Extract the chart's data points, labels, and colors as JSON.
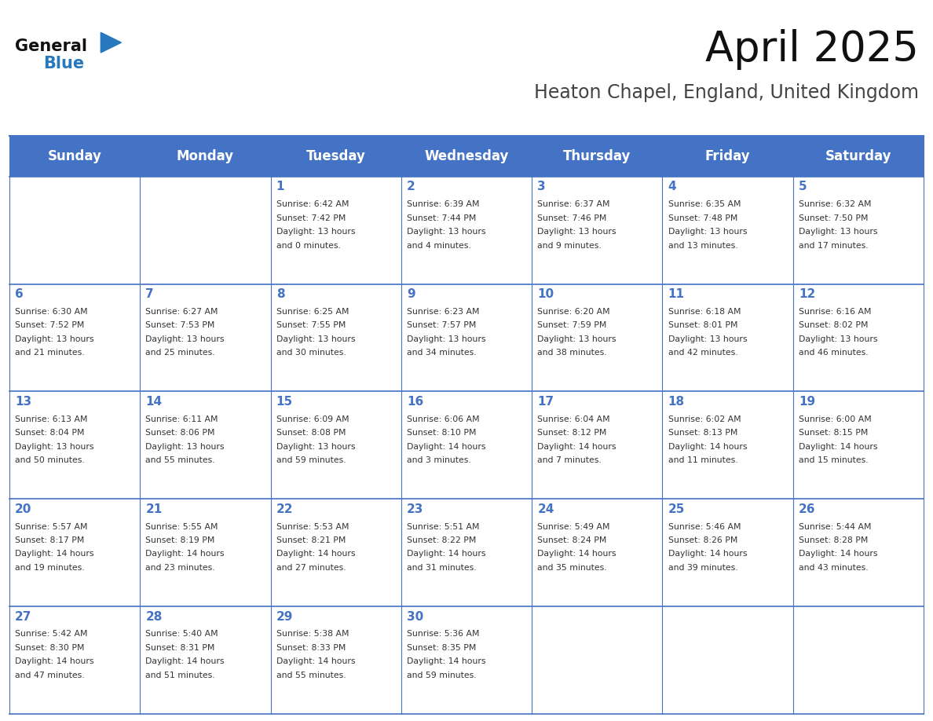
{
  "title": "April 2025",
  "subtitle": "Heaton Chapel, England, United Kingdom",
  "days_of_week": [
    "Sunday",
    "Monday",
    "Tuesday",
    "Wednesday",
    "Thursday",
    "Friday",
    "Saturday"
  ],
  "header_bg_color": "#4472C4",
  "header_text_color": "#FFFFFF",
  "cell_bg_color": "#FFFFFF",
  "border_color": "#4472C4",
  "day_num_color": "#4472C4",
  "text_color": "#333333",
  "title_color": "#111111",
  "subtitle_color": "#444444",
  "logo_general_color": "#111111",
  "logo_blue_color": "#2878BE",
  "weeks": [
    [
      {
        "day": null,
        "sunrise": null,
        "sunset": null,
        "daylight": null
      },
      {
        "day": null,
        "sunrise": null,
        "sunset": null,
        "daylight": null
      },
      {
        "day": 1,
        "sunrise": "6:42 AM",
        "sunset": "7:42 PM",
        "daylight": "13 hours and 0 minutes."
      },
      {
        "day": 2,
        "sunrise": "6:39 AM",
        "sunset": "7:44 PM",
        "daylight": "13 hours and 4 minutes."
      },
      {
        "day": 3,
        "sunrise": "6:37 AM",
        "sunset": "7:46 PM",
        "daylight": "13 hours and 9 minutes."
      },
      {
        "day": 4,
        "sunrise": "6:35 AM",
        "sunset": "7:48 PM",
        "daylight": "13 hours and 13 minutes."
      },
      {
        "day": 5,
        "sunrise": "6:32 AM",
        "sunset": "7:50 PM",
        "daylight": "13 hours and 17 minutes."
      }
    ],
    [
      {
        "day": 6,
        "sunrise": "6:30 AM",
        "sunset": "7:52 PM",
        "daylight": "13 hours and 21 minutes."
      },
      {
        "day": 7,
        "sunrise": "6:27 AM",
        "sunset": "7:53 PM",
        "daylight": "13 hours and 25 minutes."
      },
      {
        "day": 8,
        "sunrise": "6:25 AM",
        "sunset": "7:55 PM",
        "daylight": "13 hours and 30 minutes."
      },
      {
        "day": 9,
        "sunrise": "6:23 AM",
        "sunset": "7:57 PM",
        "daylight": "13 hours and 34 minutes."
      },
      {
        "day": 10,
        "sunrise": "6:20 AM",
        "sunset": "7:59 PM",
        "daylight": "13 hours and 38 minutes."
      },
      {
        "day": 11,
        "sunrise": "6:18 AM",
        "sunset": "8:01 PM",
        "daylight": "13 hours and 42 minutes."
      },
      {
        "day": 12,
        "sunrise": "6:16 AM",
        "sunset": "8:02 PM",
        "daylight": "13 hours and 46 minutes."
      }
    ],
    [
      {
        "day": 13,
        "sunrise": "6:13 AM",
        "sunset": "8:04 PM",
        "daylight": "13 hours and 50 minutes."
      },
      {
        "day": 14,
        "sunrise": "6:11 AM",
        "sunset": "8:06 PM",
        "daylight": "13 hours and 55 minutes."
      },
      {
        "day": 15,
        "sunrise": "6:09 AM",
        "sunset": "8:08 PM",
        "daylight": "13 hours and 59 minutes."
      },
      {
        "day": 16,
        "sunrise": "6:06 AM",
        "sunset": "8:10 PM",
        "daylight": "14 hours and 3 minutes."
      },
      {
        "day": 17,
        "sunrise": "6:04 AM",
        "sunset": "8:12 PM",
        "daylight": "14 hours and 7 minutes."
      },
      {
        "day": 18,
        "sunrise": "6:02 AM",
        "sunset": "8:13 PM",
        "daylight": "14 hours and 11 minutes."
      },
      {
        "day": 19,
        "sunrise": "6:00 AM",
        "sunset": "8:15 PM",
        "daylight": "14 hours and 15 minutes."
      }
    ],
    [
      {
        "day": 20,
        "sunrise": "5:57 AM",
        "sunset": "8:17 PM",
        "daylight": "14 hours and 19 minutes."
      },
      {
        "day": 21,
        "sunrise": "5:55 AM",
        "sunset": "8:19 PM",
        "daylight": "14 hours and 23 minutes."
      },
      {
        "day": 22,
        "sunrise": "5:53 AM",
        "sunset": "8:21 PM",
        "daylight": "14 hours and 27 minutes."
      },
      {
        "day": 23,
        "sunrise": "5:51 AM",
        "sunset": "8:22 PM",
        "daylight": "14 hours and 31 minutes."
      },
      {
        "day": 24,
        "sunrise": "5:49 AM",
        "sunset": "8:24 PM",
        "daylight": "14 hours and 35 minutes."
      },
      {
        "day": 25,
        "sunrise": "5:46 AM",
        "sunset": "8:26 PM",
        "daylight": "14 hours and 39 minutes."
      },
      {
        "day": 26,
        "sunrise": "5:44 AM",
        "sunset": "8:28 PM",
        "daylight": "14 hours and 43 minutes."
      }
    ],
    [
      {
        "day": 27,
        "sunrise": "5:42 AM",
        "sunset": "8:30 PM",
        "daylight": "14 hours and 47 minutes."
      },
      {
        "day": 28,
        "sunrise": "5:40 AM",
        "sunset": "8:31 PM",
        "daylight": "14 hours and 51 minutes."
      },
      {
        "day": 29,
        "sunrise": "5:38 AM",
        "sunset": "8:33 PM",
        "daylight": "14 hours and 55 minutes."
      },
      {
        "day": 30,
        "sunrise": "5:36 AM",
        "sunset": "8:35 PM",
        "daylight": "14 hours and 59 minutes."
      },
      {
        "day": null,
        "sunrise": null,
        "sunset": null,
        "daylight": null
      },
      {
        "day": null,
        "sunrise": null,
        "sunset": null,
        "daylight": null
      },
      {
        "day": null,
        "sunrise": null,
        "sunset": null,
        "daylight": null
      }
    ]
  ]
}
